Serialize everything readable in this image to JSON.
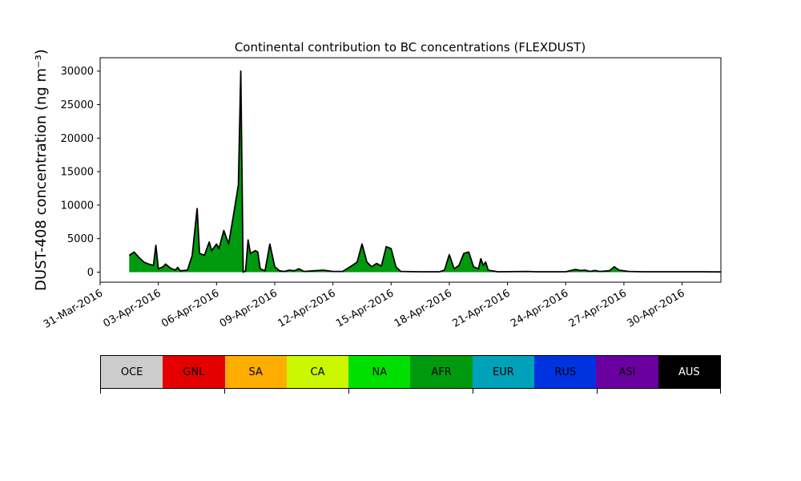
{
  "chart_data": {
    "type": "area",
    "title": "Continental contribution to BC concentrations (FLEXDUST)",
    "ylabel": "DUST-408 concentration (ng m⁻³)",
    "xlabel": "",
    "xlim": [
      "2016-03-31",
      "2016-05-02"
    ],
    "ylim": [
      -1500,
      32000
    ],
    "yticks": [
      0,
      5000,
      10000,
      15000,
      20000,
      25000,
      30000
    ],
    "xticks": [
      "31-Mar-2016",
      "03-Apr-2016",
      "06-Apr-2016",
      "09-Apr-2016",
      "12-Apr-2016",
      "15-Apr-2016",
      "18-Apr-2016",
      "21-Apr-2016",
      "24-Apr-2016",
      "27-Apr-2016",
      "30-Apr-2016"
    ],
    "stacked": true,
    "outline_color": "#000000",
    "series": [
      {
        "name": "AFR",
        "color": "#009a0e",
        "points": [
          [
            "2016-04-01 12:00",
            2500
          ],
          [
            "2016-04-01 18:00",
            3000
          ],
          [
            "2016-04-02 00:00",
            2200
          ],
          [
            "2016-04-02 06:00",
            1500
          ],
          [
            "2016-04-02 12:00",
            1200
          ],
          [
            "2016-04-02 18:00",
            1000
          ],
          [
            "2016-04-02 21:00",
            4000
          ],
          [
            "2016-04-03 00:00",
            500
          ],
          [
            "2016-04-03 06:00",
            800
          ],
          [
            "2016-04-03 09:00",
            1200
          ],
          [
            "2016-04-03 15:00",
            600
          ],
          [
            "2016-04-03 21:00",
            300
          ],
          [
            "2016-04-04 00:00",
            700
          ],
          [
            "2016-04-04 03:00",
            200
          ],
          [
            "2016-04-04 12:00",
            300
          ],
          [
            "2016-04-04 18:00",
            2500
          ],
          [
            "2016-04-05 00:00",
            9500
          ],
          [
            "2016-04-05 03:00",
            2800
          ],
          [
            "2016-04-05 09:00",
            2500
          ],
          [
            "2016-04-05 15:00",
            4500
          ],
          [
            "2016-04-05 18:00",
            3200
          ],
          [
            "2016-04-06 00:00",
            4200
          ],
          [
            "2016-04-06 03:00",
            3500
          ],
          [
            "2016-04-06 09:00",
            6200
          ],
          [
            "2016-04-06 15:00",
            4200
          ],
          [
            "2016-04-06 21:00",
            8500
          ],
          [
            "2016-04-07 03:00",
            13000
          ],
          [
            "2016-04-07 06:00",
            30000
          ],
          [
            "2016-04-07 09:00",
            0
          ],
          [
            "2016-04-07 12:00",
            200
          ],
          [
            "2016-04-07 15:00",
            4800
          ],
          [
            "2016-04-07 18:00",
            2800
          ],
          [
            "2016-04-08 00:00",
            3200
          ],
          [
            "2016-04-08 03:00",
            3000
          ],
          [
            "2016-04-08 06:00",
            500
          ],
          [
            "2016-04-08 12:00",
            200
          ],
          [
            "2016-04-08 18:00",
            4200
          ],
          [
            "2016-04-09 00:00",
            800
          ],
          [
            "2016-04-09 06:00",
            200
          ],
          [
            "2016-04-09 12:00",
            100
          ],
          [
            "2016-04-09 18:00",
            300
          ],
          [
            "2016-04-10 00:00",
            200
          ],
          [
            "2016-04-10 06:00",
            500
          ],
          [
            "2016-04-10 12:00",
            100
          ],
          [
            "2016-04-11 00:00",
            200
          ],
          [
            "2016-04-11 12:00",
            300
          ],
          [
            "2016-04-12 00:00",
            100
          ],
          [
            "2016-04-12 12:00",
            100
          ],
          [
            "2016-04-13 00:00",
            1000
          ],
          [
            "2016-04-13 06:00",
            1500
          ],
          [
            "2016-04-13 12:00",
            4200
          ],
          [
            "2016-04-13 18:00",
            1500
          ],
          [
            "2016-04-14 00:00",
            800
          ],
          [
            "2016-04-14 06:00",
            1300
          ],
          [
            "2016-04-14 12:00",
            900
          ],
          [
            "2016-04-14 18:00",
            3800
          ],
          [
            "2016-04-15 00:00",
            3500
          ],
          [
            "2016-04-15 06:00",
            800
          ],
          [
            "2016-04-15 12:00",
            100
          ],
          [
            "2016-04-16 12:00",
            50
          ],
          [
            "2016-04-17 12:00",
            50
          ],
          [
            "2016-04-17 18:00",
            300
          ],
          [
            "2016-04-18 00:00",
            2600
          ],
          [
            "2016-04-18 06:00",
            500
          ],
          [
            "2016-04-18 12:00",
            1000
          ],
          [
            "2016-04-18 18:00",
            2800
          ],
          [
            "2016-04-19 00:00",
            3000
          ],
          [
            "2016-04-19 06:00",
            800
          ],
          [
            "2016-04-19 12:00",
            500
          ],
          [
            "2016-04-19 15:00",
            2000
          ],
          [
            "2016-04-19 18:00",
            1000
          ],
          [
            "2016-04-19 21:00",
            1500
          ],
          [
            "2016-04-20 00:00",
            300
          ],
          [
            "2016-04-20 12:00",
            50
          ],
          [
            "2016-04-22 00:00",
            100
          ],
          [
            "2016-04-22 12:00",
            50
          ],
          [
            "2016-04-24 00:00",
            50
          ],
          [
            "2016-04-24 12:00",
            400
          ],
          [
            "2016-04-24 18:00",
            250
          ],
          [
            "2016-04-25 00:00",
            300
          ],
          [
            "2016-04-25 06:00",
            100
          ],
          [
            "2016-04-25 12:00",
            250
          ],
          [
            "2016-04-25 18:00",
            100
          ],
          [
            "2016-04-26 06:00",
            200
          ],
          [
            "2016-04-26 12:00",
            800
          ],
          [
            "2016-04-26 18:00",
            300
          ],
          [
            "2016-04-27 06:00",
            100
          ],
          [
            "2016-04-28 00:00",
            50
          ],
          [
            "2016-04-29 06:00",
            50
          ],
          [
            "2016-04-30 00:00",
            50
          ],
          [
            "2016-05-01 00:00",
            50
          ],
          [
            "2016-05-02 00:00",
            30
          ]
        ]
      }
    ]
  },
  "legend": {
    "items": [
      {
        "label": "OCE",
        "color": "#cccccc",
        "text_color": "#000000"
      },
      {
        "label": "GNL",
        "color": "#e50000",
        "text_color": "#000000"
      },
      {
        "label": "SA",
        "color": "#ffad00",
        "text_color": "#000000"
      },
      {
        "label": "CA",
        "color": "#ccf700",
        "text_color": "#000000"
      },
      {
        "label": "NA",
        "color": "#00e000",
        "text_color": "#000000"
      },
      {
        "label": "AFR",
        "color": "#009a0e",
        "text_color": "#000000"
      },
      {
        "label": "EUR",
        "color": "#00a2b9",
        "text_color": "#000000"
      },
      {
        "label": "RUS",
        "color": "#0032e0",
        "text_color": "#000000"
      },
      {
        "label": "ASI",
        "color": "#6b00a0",
        "text_color": "#000000"
      },
      {
        "label": "AUS",
        "color": "#000000",
        "text_color": "#ffffff"
      }
    ]
  }
}
